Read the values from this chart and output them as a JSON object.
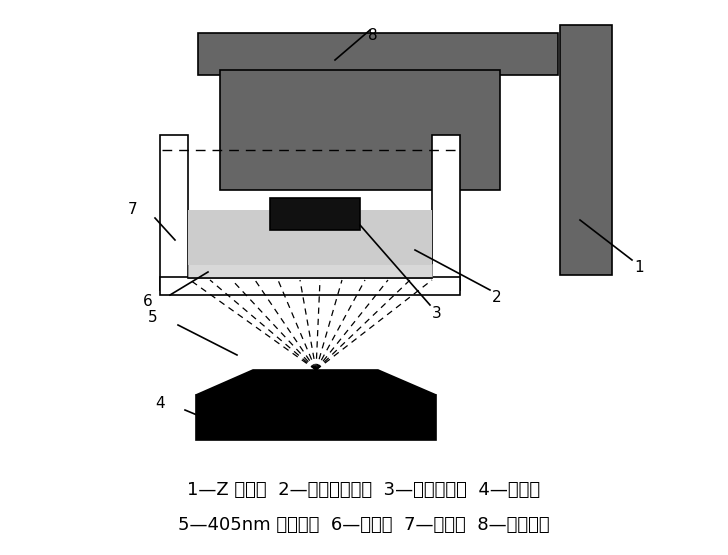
{
  "bg_color": "#ffffff",
  "line_color": "#000000",
  "dark_gray": "#666666",
  "medium_gray": "#888888",
  "light_gray": "#cccccc",
  "very_light_gray": "#d8d8d8",
  "caption_line1": "1—Z 运动轴  2—液态光敏树脂  3—已固化实体  4—面光源",
  "caption_line2": "5—405nm 波长光线  6—离型膜  7—树脂槽  8—成型平台",
  "label_1": "1",
  "label_2": "2",
  "label_3": "3",
  "label_4": "4",
  "label_5": "5",
  "label_6": "6",
  "label_7": "7",
  "label_8": "8",
  "font_size_caption": 13,
  "font_size_label": 11
}
